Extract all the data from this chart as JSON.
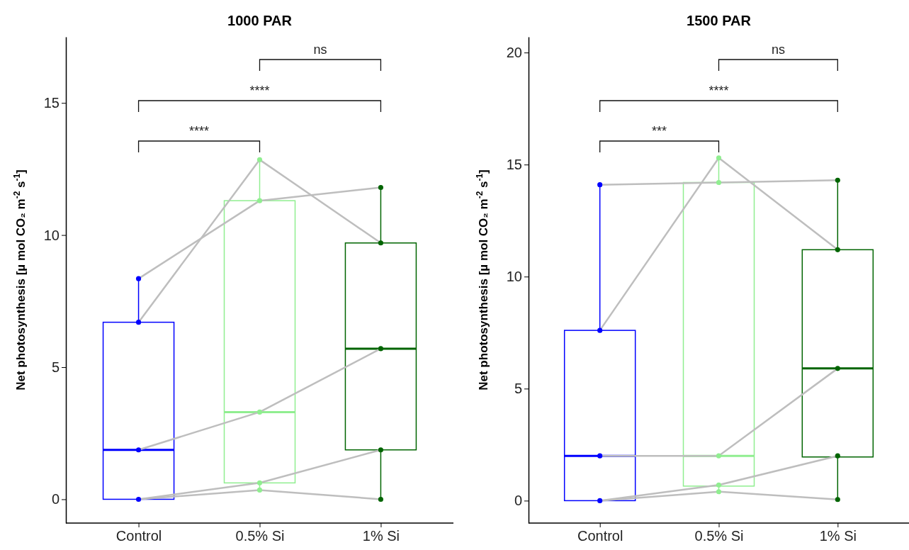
{
  "chart_data": [
    {
      "type": "box",
      "title": "1000 PAR",
      "ylabel": "Net photosynthesis [µ mol CO₂ m$^{-2}$ s$^{-1}$]",
      "categories": [
        "Control",
        "0.5% Si",
        "1% Si"
      ],
      "ylim": [
        -0.9,
        17.5
      ],
      "yticks": [
        0,
        5,
        10,
        15
      ],
      "grid": false,
      "boxes": [
        {
          "low": 0,
          "q1": 0,
          "median": 1.87,
          "q3": 6.7,
          "high": 8.35
        },
        {
          "low": 0.35,
          "q1": 0.62,
          "median": 3.3,
          "q3": 11.3,
          "high": 12.85
        },
        {
          "low": 0,
          "q1": 1.87,
          "median": 5.7,
          "q3": 9.7,
          "high": 11.8
        }
      ],
      "colors": [
        "#0000ff",
        "#90ee90",
        "#006400"
      ],
      "series": [
        {
          "type": "line",
          "color": "#bebebe",
          "marker": "none",
          "values": [
            8.35,
            11.3,
            11.8
          ]
        },
        {
          "type": "line",
          "color": "#bebebe",
          "marker": "none",
          "values": [
            6.7,
            12.85,
            9.7
          ]
        },
        {
          "type": "line",
          "color": "#bebebe",
          "marker": "none",
          "values": [
            1.87,
            3.3,
            5.7
          ]
        },
        {
          "type": "line",
          "color": "#bebebe",
          "marker": "none",
          "values": [
            0,
            0.62,
            1.87
          ]
        },
        {
          "type": "line",
          "color": "#bebebe",
          "marker": "none",
          "values": [
            0,
            0.35,
            0
          ]
        },
        {
          "type": "scatter",
          "color": "#0000ff",
          "marker": "circle",
          "x": [
            "Control",
            "Control",
            "Control",
            "Control"
          ],
          "values": [
            0,
            1.87,
            6.7,
            8.35
          ]
        },
        {
          "type": "scatter",
          "color": "#90ee90",
          "marker": "circle",
          "x": [
            "0.5% Si",
            "0.5% Si",
            "0.5% Si",
            "0.5% Si",
            "0.5% Si"
          ],
          "values": [
            0.35,
            0.62,
            3.3,
            11.3,
            12.85
          ]
        },
        {
          "type": "scatter",
          "color": "#006400",
          "marker": "circle",
          "x": [
            "1% Si",
            "1% Si",
            "1% Si",
            "1% Si",
            "1% Si"
          ],
          "values": [
            0,
            1.87,
            5.7,
            9.7,
            11.8
          ]
        }
      ],
      "annotations": [
        "****",
        "****",
        "ns"
      ]
    },
    {
      "type": "box",
      "title": "1500 PAR",
      "ylabel": "Net photosynthesis [µ mol CO₂ m$^{-2}$ s$^{-1}$]",
      "categories": [
        "Control",
        "0.5% Si",
        "1% Si"
      ],
      "ylim": [
        -1,
        20.7
      ],
      "yticks": [
        0,
        5,
        10,
        15,
        20
      ],
      "grid": false,
      "boxes": [
        {
          "low": 0,
          "q1": 0,
          "median": 2.0,
          "q3": 7.6,
          "high": 14.1
        },
        {
          "low": 0.4,
          "q1": 0.65,
          "median": 2.0,
          "q3": 14.2,
          "high": 15.3
        },
        {
          "low": 0.05,
          "q1": 1.95,
          "median": 5.9,
          "q3": 11.2,
          "high": 14.3
        }
      ],
      "colors": [
        "#0000ff",
        "#90ee90",
        "#006400"
      ],
      "series": [
        {
          "type": "line",
          "color": "#bebebe",
          "marker": "none",
          "values": [
            14.1,
            14.2,
            14.3
          ]
        },
        {
          "type": "line",
          "color": "#bebebe",
          "marker": "none",
          "values": [
            7.6,
            15.3,
            11.2
          ]
        },
        {
          "type": "line",
          "color": "#bebebe",
          "marker": "none",
          "values": [
            2.0,
            2.0,
            5.9
          ]
        },
        {
          "type": "line",
          "color": "#bebebe",
          "marker": "none",
          "values": [
            0,
            0.7,
            2.0
          ]
        },
        {
          "type": "line",
          "color": "#bebebe",
          "marker": "none",
          "values": [
            0,
            0.4,
            0.05
          ]
        },
        {
          "type": "scatter",
          "color": "#0000ff",
          "marker": "circle",
          "x": [
            "Control",
            "Control",
            "Control",
            "Control"
          ],
          "values": [
            0,
            2.0,
            7.6,
            14.1
          ]
        },
        {
          "type": "scatter",
          "color": "#90ee90",
          "marker": "circle",
          "x": [
            "0.5% Si",
            "0.5% Si",
            "0.5% Si",
            "0.5% Si",
            "0.5% Si"
          ],
          "values": [
            0.4,
            0.7,
            2.0,
            14.2,
            15.3
          ]
        },
        {
          "type": "scatter",
          "color": "#006400",
          "marker": "circle",
          "x": [
            "1% Si",
            "1% Si",
            "1% Si",
            "1% Si",
            "1% Si"
          ],
          "values": [
            0.05,
            2.0,
            5.9,
            11.2,
            14.3
          ]
        }
      ],
      "annotations": [
        "***",
        "****",
        "ns"
      ]
    }
  ]
}
